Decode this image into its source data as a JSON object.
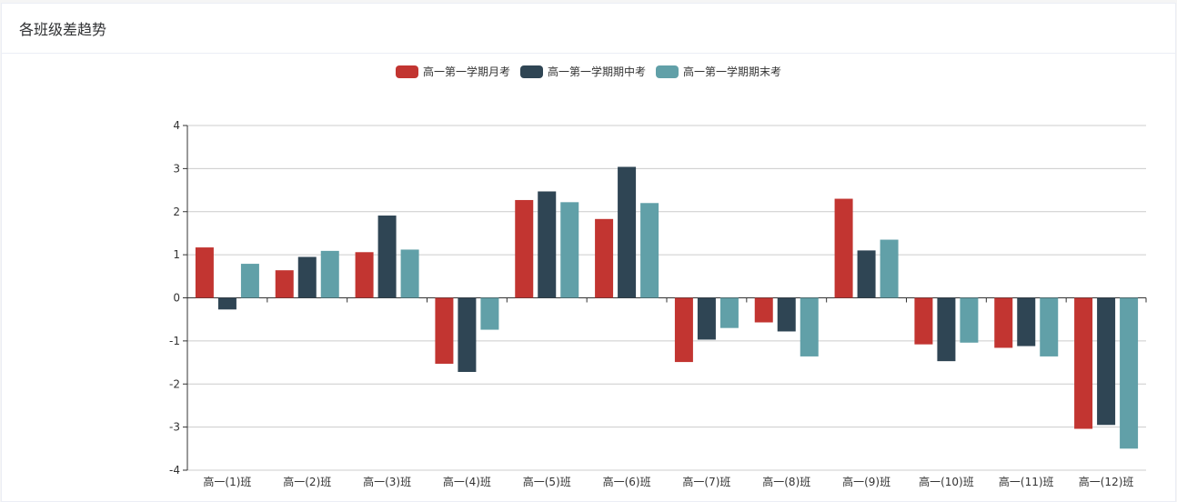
{
  "panel": {
    "title": "各班级差趋势"
  },
  "chart_data": {
    "type": "bar",
    "title": "",
    "xlabel": "",
    "ylabel": "",
    "ylim": [
      -4,
      4
    ],
    "yticks": [
      4,
      3,
      2,
      1,
      0,
      -1,
      -2,
      -3,
      -4
    ],
    "grid": true,
    "legend_position": "top-center",
    "categories": [
      "高一(1)班",
      "高一(2)班",
      "高一(3)班",
      "高一(4)班",
      "高一(5)班",
      "高一(6)班",
      "高一(7)班",
      "高一(8)班",
      "高一(9)班",
      "高一(10)班",
      "高一(11)班",
      "高一(12)班"
    ],
    "series": [
      {
        "name": "高一第一学期月考",
        "color": "#c23531",
        "values": [
          1.17,
          0.64,
          1.06,
          -1.53,
          2.27,
          1.83,
          -1.49,
          -0.57,
          2.3,
          -1.08,
          -1.16,
          -3.04
        ]
      },
      {
        "name": "高一第一学期期中考",
        "color": "#2f4554",
        "values": [
          -0.27,
          0.95,
          1.91,
          -1.72,
          2.47,
          3.04,
          -0.97,
          -0.78,
          1.1,
          -1.47,
          -1.12,
          -2.95
        ]
      },
      {
        "name": "高一第一学期期末考",
        "color": "#61a0a8",
        "values": [
          0.79,
          1.09,
          1.12,
          -0.74,
          2.22,
          2.2,
          -0.7,
          -1.36,
          1.35,
          -1.04,
          -1.36,
          -3.5
        ]
      }
    ]
  }
}
